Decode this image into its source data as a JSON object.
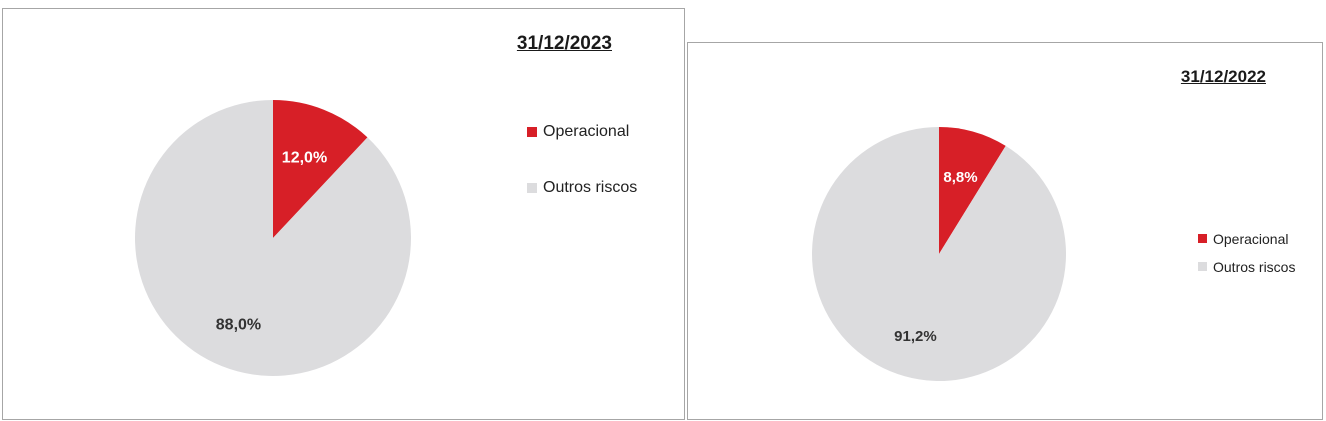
{
  "chart_data": [
    {
      "type": "pie",
      "title": "31/12/2023",
      "categories": [
        "Operacional",
        "Outros riscos"
      ],
      "values": [
        12.0,
        88.0
      ],
      "data_labels": [
        "12,0%",
        "88,0%"
      ],
      "colors": [
        "#d71f27",
        "#dcdcde"
      ],
      "legend": {
        "placement": "right",
        "entries": [
          "Operacional",
          "Outros riscos"
        ]
      }
    },
    {
      "type": "pie",
      "title": "31/12/2022",
      "categories": [
        "Operacional",
        "Outros riscos"
      ],
      "values": [
        8.8,
        91.2
      ],
      "data_labels": [
        "8,8%",
        "91,2%"
      ],
      "colors": [
        "#d71f27",
        "#dcdcde"
      ],
      "legend": {
        "placement": "right",
        "entries": [
          "Operacional",
          "Outros riscos"
        ]
      }
    }
  ]
}
